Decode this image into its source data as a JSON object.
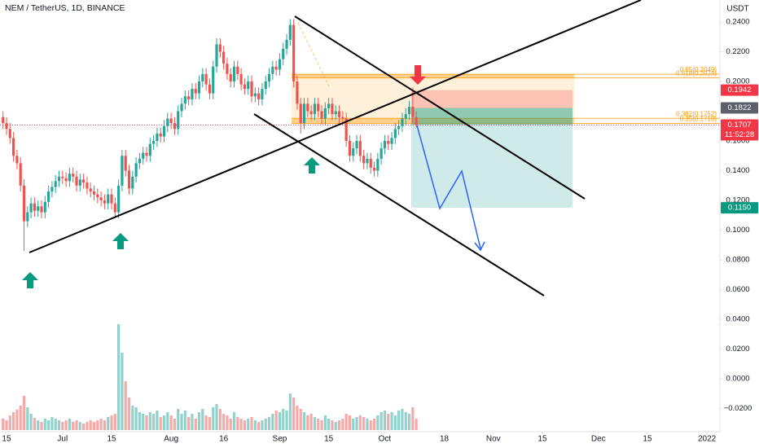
{
  "chart_data": {
    "type": "candlestick",
    "title": "NEM / TetherUS, 1D, BINANCE",
    "ylabel": "USDT",
    "ylim": [
      -0.0356,
      0.2548
    ],
    "xlim": [
      -0.86,
      204.7
    ],
    "grid": false,
    "up_color": "#26a69a",
    "down_color": "#ef5350",
    "yticks": [
      {
        "value": 0.24,
        "label": "0.2400"
      },
      {
        "value": 0.22,
        "label": "0.2200"
      },
      {
        "value": 0.2,
        "label": "0.2000"
      },
      {
        "value": 0.16,
        "label": "0.1600"
      },
      {
        "value": 0.14,
        "label": "0.1400"
      },
      {
        "value": 0.12,
        "label": "0.1200"
      },
      {
        "value": 0.1,
        "label": "0.1000"
      },
      {
        "value": 0.08,
        "label": "0.0800"
      },
      {
        "value": 0.06,
        "label": "0.0600"
      },
      {
        "value": 0.04,
        "label": "0.0400"
      },
      {
        "value": 0.02,
        "label": "0.0200"
      },
      {
        "value": 0,
        "label": "0.0000"
      },
      {
        "value": -0.02,
        "label": "−0.0200"
      }
    ],
    "xticks": [
      {
        "value": 1,
        "label": "15"
      },
      {
        "value": 17,
        "label": "Jul"
      },
      {
        "value": 31,
        "label": "15"
      },
      {
        "value": 48,
        "label": "Aug"
      },
      {
        "value": 63,
        "label": "16"
      },
      {
        "value": 79,
        "label": "Sep"
      },
      {
        "value": 93,
        "label": "15"
      },
      {
        "value": 109,
        "label": "Oct"
      },
      {
        "value": 126,
        "label": "18"
      },
      {
        "value": 140,
        "label": "Nov"
      },
      {
        "value": 154,
        "label": "15"
      },
      {
        "value": 170,
        "label": "Dec"
      },
      {
        "value": 184,
        "label": "15"
      },
      {
        "value": 201,
        "label": "2022"
      }
    ],
    "x": [
      0,
      1,
      2,
      3,
      4,
      5,
      6,
      7,
      8,
      9,
      10,
      11,
      12,
      13,
      14,
      15,
      16,
      17,
      18,
      19,
      20,
      21,
      22,
      23,
      24,
      25,
      26,
      27,
      28,
      29,
      30,
      31,
      32,
      33,
      34,
      35,
      36,
      37,
      38,
      39,
      40,
      41,
      42,
      43,
      44,
      45,
      46,
      47,
      48,
      49,
      50,
      51,
      52,
      53,
      54,
      55,
      56,
      57,
      58,
      59,
      60,
      61,
      62,
      63,
      64,
      65,
      66,
      67,
      68,
      69,
      70,
      71,
      72,
      73,
      74,
      75,
      76,
      77,
      78,
      79,
      80,
      81,
      82,
      83,
      84,
      85,
      86,
      87,
      88,
      89,
      90,
      91,
      92,
      93,
      94,
      95,
      96,
      97,
      98,
      99,
      100,
      101,
      102,
      103,
      104,
      105,
      106,
      107,
      108,
      109,
      110,
      111,
      112,
      113,
      114,
      115,
      116,
      117,
      118
    ],
    "open": [
      0.176,
      0.172,
      0.168,
      0.162,
      0.15,
      0.145,
      0.13,
      0.106,
      0.112,
      0.118,
      0.113,
      0.116,
      0.112,
      0.119,
      0.126,
      0.129,
      0.133,
      0.136,
      0.135,
      0.133,
      0.138,
      0.136,
      0.13,
      0.134,
      0.132,
      0.128,
      0.126,
      0.124,
      0.122,
      0.12,
      0.118,
      0.124,
      0.118,
      0.112,
      0.13,
      0.15,
      0.14,
      0.128,
      0.136,
      0.145,
      0.148,
      0.152,
      0.15,
      0.158,
      0.16,
      0.165,
      0.163,
      0.17,
      0.175,
      0.172,
      0.168,
      0.18,
      0.185,
      0.19,
      0.188,
      0.195,
      0.192,
      0.2,
      0.205,
      0.198,
      0.192,
      0.21,
      0.225,
      0.22,
      0.212,
      0.205,
      0.2,
      0.21,
      0.205,
      0.198,
      0.195,
      0.2,
      0.19,
      0.192,
      0.188,
      0.195,
      0.2,
      0.205,
      0.21,
      0.208,
      0.215,
      0.222,
      0.228,
      0.238,
      0.2,
      0.185,
      0.172,
      0.185,
      0.18,
      0.178,
      0.185,
      0.18,
      0.175,
      0.182,
      0.185,
      0.178,
      0.18,
      0.176,
      0.175,
      0.16,
      0.15,
      0.155,
      0.16,
      0.15,
      0.145,
      0.148,
      0.142,
      0.14,
      0.148,
      0.155,
      0.16,
      0.158,
      0.162,
      0.168,
      0.17,
      0.175,
      0.178,
      0.183,
      0.176
    ],
    "high": [
      0.18,
      0.176,
      0.172,
      0.166,
      0.154,
      0.149,
      0.134,
      0.116,
      0.122,
      0.122,
      0.12,
      0.12,
      0.123,
      0.13,
      0.133,
      0.137,
      0.14,
      0.14,
      0.139,
      0.142,
      0.142,
      0.14,
      0.138,
      0.138,
      0.136,
      0.132,
      0.13,
      0.128,
      0.126,
      0.124,
      0.128,
      0.128,
      0.122,
      0.134,
      0.154,
      0.154,
      0.144,
      0.14,
      0.149,
      0.152,
      0.156,
      0.156,
      0.162,
      0.164,
      0.169,
      0.169,
      0.174,
      0.179,
      0.179,
      0.176,
      0.184,
      0.189,
      0.194,
      0.194,
      0.199,
      0.199,
      0.204,
      0.209,
      0.209,
      0.202,
      0.214,
      0.229,
      0.229,
      0.224,
      0.216,
      0.209,
      0.214,
      0.214,
      0.209,
      0.202,
      0.204,
      0.204,
      0.196,
      0.196,
      0.199,
      0.204,
      0.209,
      0.214,
      0.214,
      0.219,
      0.226,
      0.232,
      0.242,
      0.242,
      0.204,
      0.189,
      0.189,
      0.189,
      0.184,
      0.189,
      0.189,
      0.184,
      0.186,
      0.189,
      0.189,
      0.184,
      0.184,
      0.18,
      0.179,
      0.164,
      0.159,
      0.164,
      0.164,
      0.154,
      0.152,
      0.152,
      0.146,
      0.152,
      0.159,
      0.164,
      0.164,
      0.166,
      0.172,
      0.174,
      0.179,
      0.182,
      0.187,
      0.196,
      0.18
    ],
    "low": [
      0.168,
      0.164,
      0.158,
      0.146,
      0.141,
      0.126,
      0.086,
      0.102,
      0.108,
      0.109,
      0.109,
      0.108,
      0.108,
      0.115,
      0.122,
      0.125,
      0.129,
      0.131,
      0.129,
      0.129,
      0.132,
      0.126,
      0.126,
      0.128,
      0.124,
      0.122,
      0.12,
      0.118,
      0.116,
      0.114,
      0.114,
      0.114,
      0.108,
      0.108,
      0.126,
      0.136,
      0.124,
      0.124,
      0.132,
      0.141,
      0.144,
      0.146,
      0.146,
      0.154,
      0.156,
      0.159,
      0.159,
      0.166,
      0.168,
      0.164,
      0.164,
      0.176,
      0.181,
      0.184,
      0.184,
      0.188,
      0.188,
      0.196,
      0.194,
      0.188,
      0.188,
      0.206,
      0.216,
      0.208,
      0.201,
      0.196,
      0.196,
      0.201,
      0.194,
      0.191,
      0.191,
      0.186,
      0.186,
      0.184,
      0.184,
      0.191,
      0.196,
      0.201,
      0.204,
      0.204,
      0.211,
      0.218,
      0.224,
      0.196,
      0.181,
      0.165,
      0.168,
      0.176,
      0.174,
      0.174,
      0.176,
      0.171,
      0.171,
      0.178,
      0.174,
      0.174,
      0.172,
      0.171,
      0.156,
      0.146,
      0.146,
      0.151,
      0.146,
      0.141,
      0.141,
      0.138,
      0.136,
      0.136,
      0.144,
      0.151,
      0.154,
      0.154,
      0.158,
      0.164,
      0.166,
      0.171,
      0.174,
      0.172,
      0.169
    ],
    "close": [
      0.172,
      0.168,
      0.162,
      0.15,
      0.145,
      0.13,
      0.106,
      0.112,
      0.118,
      0.113,
      0.116,
      0.112,
      0.119,
      0.126,
      0.129,
      0.133,
      0.136,
      0.135,
      0.133,
      0.138,
      0.136,
      0.13,
      0.134,
      0.132,
      0.128,
      0.126,
      0.124,
      0.122,
      0.12,
      0.118,
      0.124,
      0.118,
      0.112,
      0.13,
      0.15,
      0.14,
      0.128,
      0.136,
      0.145,
      0.148,
      0.152,
      0.15,
      0.158,
      0.16,
      0.165,
      0.163,
      0.17,
      0.175,
      0.172,
      0.168,
      0.18,
      0.185,
      0.19,
      0.188,
      0.195,
      0.192,
      0.2,
      0.205,
      0.198,
      0.192,
      0.21,
      0.225,
      0.22,
      0.212,
      0.205,
      0.2,
      0.21,
      0.205,
      0.198,
      0.195,
      0.2,
      0.19,
      0.192,
      0.188,
      0.195,
      0.2,
      0.205,
      0.21,
      0.208,
      0.215,
      0.222,
      0.228,
      0.238,
      0.2,
      0.185,
      0.172,
      0.185,
      0.18,
      0.178,
      0.185,
      0.18,
      0.175,
      0.182,
      0.185,
      0.178,
      0.18,
      0.176,
      0.175,
      0.16,
      0.15,
      0.155,
      0.16,
      0.15,
      0.145,
      0.148,
      0.142,
      0.14,
      0.148,
      0.155,
      0.16,
      0.158,
      0.162,
      0.168,
      0.17,
      0.175,
      0.178,
      0.183,
      0.176,
      0.1707
    ],
    "volume": [
      14,
      12,
      18,
      22,
      25,
      30,
      42,
      28,
      20,
      15,
      12,
      10,
      14,
      12,
      16,
      14,
      12,
      10,
      12,
      14,
      10,
      12,
      10,
      8,
      10,
      12,
      10,
      12,
      14,
      12,
      16,
      18,
      20,
      130,
      95,
      60,
      40,
      30,
      28,
      22,
      20,
      18,
      22,
      20,
      24,
      16,
      18,
      22,
      18,
      14,
      26,
      20,
      24,
      16,
      20,
      14,
      22,
      26,
      18,
      16,
      28,
      32,
      26,
      20,
      18,
      14,
      22,
      16,
      14,
      12,
      14,
      16,
      12,
      10,
      12,
      14,
      16,
      20,
      24,
      22,
      26,
      24,
      45,
      40,
      30,
      26,
      22,
      18,
      20,
      16,
      14,
      12,
      18,
      14,
      12,
      10,
      12,
      14,
      20,
      18,
      14,
      16,
      18,
      16,
      14,
      12,
      14,
      18,
      22,
      24,
      20,
      22,
      18,
      24,
      26,
      22,
      20,
      28,
      14
    ],
    "volume_lim": [
      0,
      140
    ],
    "fib_levels": [
      {
        "value": 0.2049,
        "label": "0.65(0.2049)"
      },
      {
        "value": 0.2024,
        "label": "0.618(0.2024)"
      },
      {
        "value": 0.1752,
        "label": "0.382(0.1752)"
      },
      {
        "value": 0.1718,
        "label": "0.35(0.1718)"
      }
    ],
    "fib_color": "#ff9800",
    "price_labels": [
      0.1942,
      0.1822,
      0.1707,
      {
        "value": 0.115,
        "label": "0.1150"
      }
    ],
    "price_label_colors": [
      "#f23645",
      "#5d606b",
      "#f23645",
      "#089981"
    ],
    "countdown": "11:52:28"
  }
}
